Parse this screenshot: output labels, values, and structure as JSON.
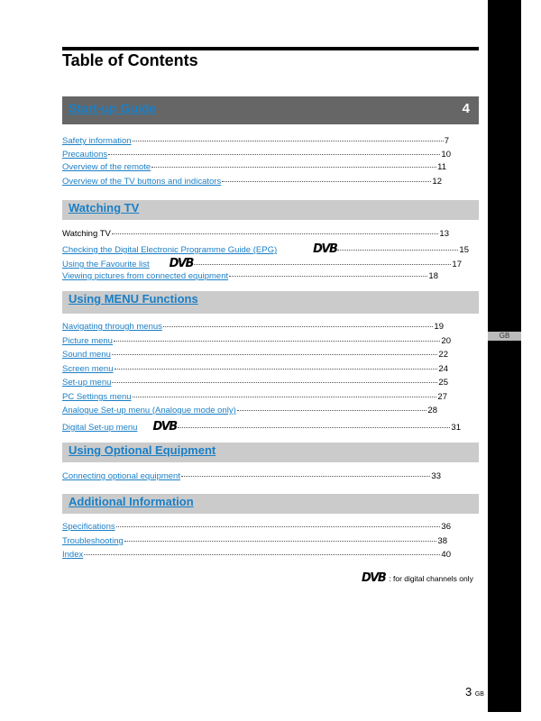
{
  "title": "Table of Contents",
  "side_label": "GB",
  "dvb_logo": "DVB",
  "sections": [
    {
      "heading": "Start-up Guide",
      "number": "4",
      "items": [
        {
          "label": "Safety information",
          "page": "7"
        },
        {
          "label": "Precautions",
          "page": "10"
        },
        {
          "label": "Overview of the remote",
          "page": "11"
        },
        {
          "label": "Overview of the TV buttons and indicators",
          "page": "12"
        }
      ]
    },
    {
      "heading": "Watching TV",
      "items": [
        {
          "label": "Watching TV",
          "page": "13"
        },
        {
          "label": "Checking the Digital Electronic Programme Guide (EPG)",
          "page": "15"
        },
        {
          "label": "Using the Favourite list",
          "page": "17"
        },
        {
          "label": "Viewing pictures from connected equipment",
          "page": "18"
        }
      ]
    },
    {
      "heading": "Using MENU Functions",
      "items": [
        {
          "label": "Navigating through menus",
          "page": "19"
        },
        {
          "label": "Picture menu",
          "page": "20"
        },
        {
          "label": "Sound menu",
          "page": "22"
        },
        {
          "label": "Screen menu",
          "page": "24"
        },
        {
          "label": "Set-up menu",
          "page": "25"
        },
        {
          "label": "PC Settings menu",
          "page": "27"
        },
        {
          "label": "Analogue Set-up menu (Analogue mode only)",
          "page": "28"
        },
        {
          "label": "Digital Set-up menu",
          "page": "31"
        }
      ]
    },
    {
      "heading": "Using Optional Equipment",
      "items": [
        {
          "label": "Connecting optional equipment",
          "page": "33"
        }
      ]
    },
    {
      "heading": "Additional Information",
      "items": [
        {
          "label": "Specifications",
          "page": "36"
        },
        {
          "label": "Troubleshooting",
          "page": "38"
        },
        {
          "label": "Index",
          "page": "40"
        }
      ]
    }
  ],
  "footnote": ": for digital channels only",
  "page_number": "3",
  "page_suffix": "GB"
}
